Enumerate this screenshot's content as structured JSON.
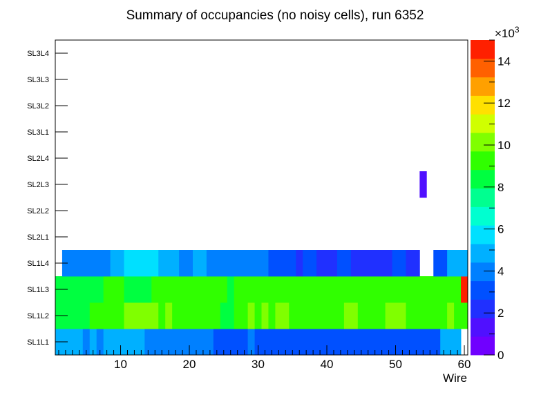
{
  "chart_data": {
    "type": "heatmap",
    "title": "Summary of occupancies (no noisy cells), run 6352",
    "xlabel": "Wire",
    "ylabel": "",
    "xlim": [
      0.5,
      60.5
    ],
    "x_ticks": [
      10,
      20,
      30,
      40,
      50,
      60
    ],
    "layers": [
      "SL1L1",
      "SL1L2",
      "SL1L3",
      "SL1L4",
      "SL2L1",
      "SL2L2",
      "SL2L3",
      "SL2L4",
      "SL3L1",
      "SL3L2",
      "SL3L3",
      "SL3L4"
    ],
    "z_range": [
      0,
      15000
    ],
    "colorbar_ticks": [
      0,
      2,
      4,
      6,
      8,
      10,
      12,
      14
    ],
    "colorbar_exponent_prefix": "×10",
    "colorbar_exponent": "3",
    "palette": [
      "#7000ff",
      "#5010ff",
      "#2030ff",
      "#0050ff",
      "#0080ff",
      "#00b0ff",
      "#00e0ff",
      "#00ffd0",
      "#00ff90",
      "#00ff40",
      "#30ff00",
      "#80ff00",
      "#d0ff00",
      "#ffe000",
      "#ffa000",
      "#ff6000",
      "#ff2000"
    ],
    "rows": [
      {
        "layer": "SL1L1",
        "segments": [
          [
            1,
            4,
            5200
          ],
          [
            5,
            5,
            4300
          ],
          [
            6,
            6,
            5200
          ],
          [
            7,
            7,
            4300
          ],
          [
            8,
            13,
            5200
          ],
          [
            14,
            23,
            4200
          ],
          [
            24,
            28,
            3400
          ],
          [
            29,
            29,
            4200
          ],
          [
            30,
            56,
            3400
          ],
          [
            57,
            59,
            5200
          ]
        ]
      },
      {
        "layer": "SL1L2",
        "segments": [
          [
            1,
            1,
            8100
          ],
          [
            2,
            5,
            8700
          ],
          [
            6,
            10,
            8900
          ],
          [
            11,
            15,
            9900
          ],
          [
            16,
            16,
            8900
          ],
          [
            17,
            17,
            9900
          ],
          [
            18,
            24,
            8900
          ],
          [
            25,
            26,
            8700
          ],
          [
            27,
            28,
            8900
          ],
          [
            29,
            29,
            9900
          ],
          [
            30,
            30,
            8900
          ],
          [
            31,
            31,
            9900
          ],
          [
            32,
            32,
            8900
          ],
          [
            33,
            34,
            9900
          ],
          [
            35,
            42,
            8900
          ],
          [
            43,
            44,
            9900
          ],
          [
            45,
            48,
            8900
          ],
          [
            49,
            51,
            9900
          ],
          [
            52,
            57,
            8900
          ],
          [
            58,
            58,
            9900
          ],
          [
            59,
            60,
            8900
          ]
        ]
      },
      {
        "layer": "SL1L3",
        "segments": [
          [
            1,
            1,
            8100
          ],
          [
            2,
            7,
            8700
          ],
          [
            8,
            10,
            9100
          ],
          [
            11,
            14,
            8700
          ],
          [
            15,
            16,
            9100
          ],
          [
            17,
            24,
            8900
          ],
          [
            25,
            25,
            9100
          ],
          [
            26,
            26,
            8700
          ],
          [
            27,
            27,
            9100
          ],
          [
            28,
            42,
            8900
          ],
          [
            43,
            44,
            9500
          ],
          [
            45,
            59,
            8900
          ],
          [
            60,
            60,
            14500
          ]
        ]
      },
      {
        "layer": "SL1L4",
        "segments": [
          [
            2,
            8,
            4300
          ],
          [
            9,
            10,
            5200
          ],
          [
            11,
            15,
            5800
          ],
          [
            16,
            18,
            5200
          ],
          [
            19,
            20,
            4300
          ],
          [
            21,
            22,
            5200
          ],
          [
            23,
            31,
            4300
          ],
          [
            32,
            35,
            3500
          ],
          [
            36,
            36,
            2300
          ],
          [
            37,
            38,
            3300
          ],
          [
            39,
            41,
            2300
          ],
          [
            42,
            43,
            3500
          ],
          [
            44,
            49,
            2400
          ],
          [
            50,
            51,
            3300
          ],
          [
            52,
            53,
            2400
          ],
          [
            56,
            57,
            3400
          ],
          [
            58,
            60,
            5200
          ]
        ]
      },
      {
        "layer": "SL2L1",
        "segments": []
      },
      {
        "layer": "SL2L2",
        "segments": []
      },
      {
        "layer": "SL2L3",
        "segments": [
          [
            54,
            54,
            1200
          ]
        ]
      },
      {
        "layer": "SL2L4",
        "segments": []
      },
      {
        "layer": "SL3L1",
        "segments": []
      },
      {
        "layer": "SL3L2",
        "segments": []
      },
      {
        "layer": "SL3L3",
        "segments": []
      },
      {
        "layer": "SL3L4",
        "segments": []
      }
    ]
  }
}
